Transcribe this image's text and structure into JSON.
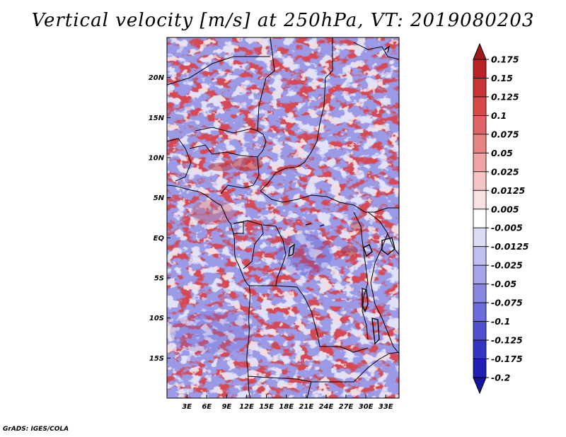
{
  "title": "Vertical velocity [m/s] at 250hPa, VT: 2019080203",
  "credit": "GrADS: IGES/COLA",
  "map": {
    "lon_range": [
      0,
      35
    ],
    "lat_range": [
      -20,
      25
    ],
    "lat_labels": [
      "20N",
      "15N",
      "10N",
      "5N",
      "EQ",
      "5S",
      "10S",
      "15S"
    ],
    "lat_values": [
      20,
      15,
      10,
      5,
      0,
      -5,
      -10,
      -15
    ],
    "lon_labels": [
      "3E",
      "6E",
      "9E",
      "12E",
      "15E",
      "18E",
      "21E",
      "24E",
      "27E",
      "30E",
      "33E"
    ],
    "lon_values": [
      3,
      6,
      9,
      12,
      15,
      18,
      21,
      24,
      27,
      30,
      33
    ]
  },
  "colorbar": {
    "levels": [
      "0.175",
      "0.15",
      "0.125",
      "0.1",
      "0.075",
      "0.05",
      "0.025",
      "0.0125",
      "0.005",
      "-0.005",
      "-0.0125",
      "-0.025",
      "-0.05",
      "-0.075",
      "-0.1",
      "-0.125",
      "-0.175",
      "-0.2"
    ],
    "colors": [
      "#a01818",
      "#b82424",
      "#c83434",
      "#d84848",
      "#e06464",
      "#e88484",
      "#f0a4a4",
      "#f6c4c4",
      "#fbe2e2",
      "#ffffff",
      "#dcdcf6",
      "#c0c0f0",
      "#a4a4ea",
      "#8888e2",
      "#6c6cda",
      "#5050d0",
      "#3434c4",
      "#2020b4",
      "#1414a0"
    ],
    "top_arrow_color": "#a01818",
    "bottom_arrow_color": "#1414a0"
  }
}
